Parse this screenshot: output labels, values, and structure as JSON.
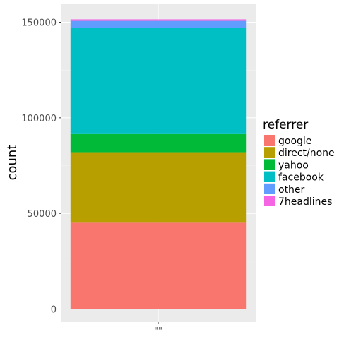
{
  "chart_data": {
    "type": "bar",
    "stacked": true,
    "categories": [
      "\"\""
    ],
    "xlabel": "",
    "ylabel": "count",
    "ylim": [
      0,
      152000
    ],
    "yticks": [
      0,
      50000,
      100000,
      150000
    ],
    "ytick_labels": [
      "0",
      "50000",
      "100000",
      "150000"
    ],
    "grid": true,
    "legend_position": "right",
    "legend_title": "referrer",
    "series": [
      {
        "name": "google",
        "values": [
          45500
        ],
        "color": "#F8766D"
      },
      {
        "name": "direct/none",
        "values": [
          36500
        ],
        "color": "#B79F00"
      },
      {
        "name": "yahoo",
        "values": [
          9500
        ],
        "color": "#00BA38"
      },
      {
        "name": "facebook",
        "values": [
          55500
        ],
        "color": "#00BFC4"
      },
      {
        "name": "other",
        "values": [
          3700
        ],
        "color": "#619CFF"
      },
      {
        "name": "7headlines",
        "values": [
          800
        ],
        "color": "#F564E3"
      }
    ]
  }
}
